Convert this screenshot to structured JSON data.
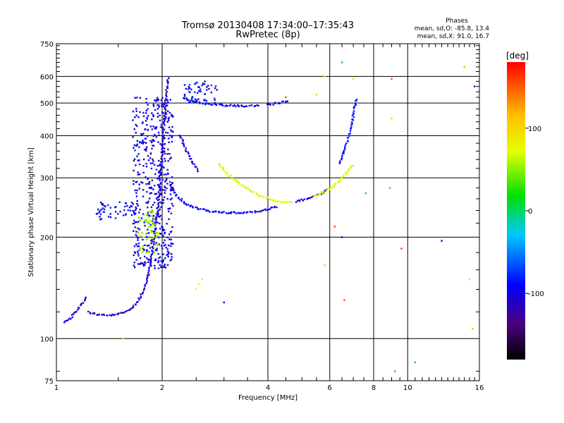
{
  "chart_data": {
    "type": "scatter",
    "title": "Tromsø 20130408 17:34:00–17:35:43",
    "subtitle": "RwPretec (8p)",
    "xlabel": "Frequency [MHz]",
    "ylabel": "Stationary phase Virtual Height [km]",
    "x_scale": "log",
    "y_scale": "log",
    "xlim": [
      1,
      16
    ],
    "ylim": [
      75,
      750
    ],
    "x_ticks": [
      1,
      2,
      4,
      6,
      8,
      10,
      16
    ],
    "y_ticks": [
      75,
      100,
      200,
      300,
      400,
      500,
      600,
      750
    ],
    "stats": {
      "heading": "Phases",
      "line_o": "mean, sd,O: -85.8, 13.4",
      "line_x": "mean, sd,X: 91.0, 16.7"
    },
    "colorbar": {
      "label": "[deg]",
      "ticks": [
        -100,
        0,
        100
      ],
      "range": [
        -180,
        180
      ]
    },
    "grid": true,
    "curves": [
      {
        "phase": -110,
        "points": [
          [
            1.23,
            120
          ],
          [
            1.3,
            118
          ],
          [
            1.4,
            117
          ],
          [
            1.5,
            118
          ],
          [
            1.6,
            121
          ],
          [
            1.7,
            128
          ],
          [
            1.78,
            140
          ],
          [
            1.83,
            155
          ],
          [
            1.86,
            175
          ],
          [
            1.9,
            200
          ],
          [
            1.93,
            230
          ],
          [
            1.96,
            270
          ],
          [
            1.98,
            310
          ],
          [
            2.0,
            360
          ],
          [
            2.02,
            420
          ],
          [
            2.04,
            480
          ],
          [
            2.06,
            540
          ],
          [
            2.08,
            600
          ]
        ]
      },
      {
        "phase": -95,
        "points": [
          [
            2.1,
            290
          ],
          [
            2.2,
            265
          ],
          [
            2.35,
            250
          ],
          [
            2.55,
            242
          ],
          [
            2.8,
            238
          ],
          [
            3.1,
            236
          ],
          [
            3.4,
            236
          ],
          [
            3.7,
            238
          ],
          [
            4.0,
            242
          ],
          [
            4.3,
            246
          ]
        ]
      },
      {
        "phase": -100,
        "points": [
          [
            4.8,
            255
          ],
          [
            5.2,
            260
          ],
          [
            5.6,
            268
          ],
          [
            5.95,
            278
          ]
        ]
      },
      {
        "phase": 75,
        "points": [
          [
            2.9,
            330
          ],
          [
            3.1,
            305
          ],
          [
            3.3,
            290
          ],
          [
            3.5,
            278
          ],
          [
            3.8,
            265
          ],
          [
            4.1,
            258
          ],
          [
            4.4,
            254
          ],
          [
            4.7,
            253
          ]
        ]
      },
      {
        "phase": 70,
        "points": [
          [
            5.4,
            265
          ],
          [
            5.9,
            275
          ],
          [
            6.3,
            290
          ],
          [
            6.7,
            310
          ],
          [
            7.0,
            330
          ]
        ]
      },
      {
        "phase": -95,
        "points": [
          [
            2.3,
            520
          ],
          [
            2.45,
            505
          ],
          [
            2.65,
            497
          ],
          [
            2.9,
            493
          ],
          [
            3.2,
            491
          ],
          [
            3.5,
            490
          ],
          [
            3.8,
            490
          ]
        ]
      },
      {
        "phase": -98,
        "points": [
          [
            4.0,
            495
          ],
          [
            4.3,
            500
          ],
          [
            4.6,
            510
          ]
        ]
      },
      {
        "phase": -85,
        "points": [
          [
            6.4,
            330
          ],
          [
            6.6,
            360
          ],
          [
            6.8,
            400
          ],
          [
            6.95,
            440
          ],
          [
            7.05,
            480
          ],
          [
            7.15,
            520
          ]
        ]
      },
      {
        "phase": -105,
        "points": [
          [
            1.05,
            112
          ],
          [
            1.1,
            115
          ],
          [
            1.17,
            125
          ],
          [
            1.22,
            133
          ]
        ]
      },
      {
        "phase": -100,
        "points": [
          [
            2.25,
            400
          ],
          [
            2.35,
            360
          ],
          [
            2.45,
            330
          ],
          [
            2.55,
            310
          ]
        ]
      }
    ],
    "clusters": [
      {
        "phase": -100,
        "x": [
          1.65,
          2.15
        ],
        "y": [
          160,
          520
        ]
      },
      {
        "phase": -90,
        "x": [
          2.3,
          2.9
        ],
        "y": [
          500,
          580
        ]
      },
      {
        "phase": -95,
        "x": [
          1.3,
          1.7
        ],
        "y": [
          225,
          255
        ]
      },
      {
        "phase": 55,
        "x": [
          1.7,
          1.95
        ],
        "y": [
          180,
          240
        ]
      }
    ],
    "scatter": [
      {
        "x": 2.5,
        "y": 140,
        "phase": 80
      },
      {
        "x": 2.55,
        "y": 145,
        "phase": 70
      },
      {
        "x": 2.6,
        "y": 150,
        "phase": 85
      },
      {
        "x": 5.5,
        "y": 530,
        "phase": 95
      },
      {
        "x": 5.8,
        "y": 600,
        "phase": 80
      },
      {
        "x": 6.5,
        "y": 660,
        "phase": 10
      },
      {
        "x": 7.0,
        "y": 590,
        "phase": 90
      },
      {
        "x": 9.0,
        "y": 590,
        "phase": 150
      },
      {
        "x": 9.6,
        "y": 185,
        "phase": 160
      },
      {
        "x": 9.2,
        "y": 80,
        "phase": 20
      },
      {
        "x": 10.5,
        "y": 85,
        "phase": 15
      },
      {
        "x": 12.5,
        "y": 195,
        "phase": -95
      },
      {
        "x": 15.0,
        "y": 150,
        "phase": 100
      },
      {
        "x": 15.3,
        "y": 107,
        "phase": 110
      },
      {
        "x": 14.5,
        "y": 640,
        "phase": 120
      },
      {
        "x": 15.5,
        "y": 560,
        "phase": -110
      },
      {
        "x": 6.2,
        "y": 215,
        "phase": 160
      },
      {
        "x": 6.5,
        "y": 200,
        "phase": -100
      },
      {
        "x": 5.8,
        "y": 165,
        "phase": 100
      },
      {
        "x": 6.6,
        "y": 130,
        "phase": 150
      },
      {
        "x": 3.0,
        "y": 128,
        "phase": -110
      },
      {
        "x": 1.55,
        "y": 100,
        "phase": 95
      },
      {
        "x": 7.6,
        "y": 270,
        "phase": 10
      },
      {
        "x": 8.9,
        "y": 280,
        "phase": -20
      },
      {
        "x": 9.0,
        "y": 450,
        "phase": 100
      },
      {
        "x": 4.5,
        "y": 520,
        "phase": 160
      }
    ]
  }
}
